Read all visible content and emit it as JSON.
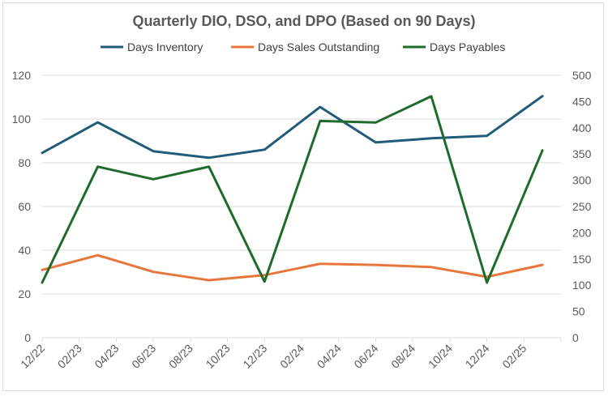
{
  "chart_data": {
    "type": "line",
    "title": "Quarterly DIO, DSO, and DPO (Based on 90 Days)",
    "xlabel": "",
    "ylabel": "",
    "x_tick_labels": [
      "12/22",
      "02/23",
      "04/23",
      "06/23",
      "08/23",
      "10/23",
      "12/23",
      "02/24",
      "04/24",
      "06/24",
      "08/24",
      "10/24",
      "12/24",
      "02/25"
    ],
    "x_range": [
      "12/22",
      "04/25"
    ],
    "ylim_left": [
      0,
      120
    ],
    "yticks_left": [
      0,
      20,
      40,
      60,
      80,
      100,
      120
    ],
    "ylim_right": [
      0,
      500
    ],
    "yticks_right": [
      0,
      50,
      100,
      150,
      200,
      250,
      300,
      350,
      400,
      450,
      500
    ],
    "grid": "horizontal",
    "legend_position": "top",
    "points_x": [
      "12/22",
      "03/23",
      "06/23",
      "09/23",
      "12/23",
      "03/24",
      "06/24",
      "09/24",
      "12/24",
      "03/25"
    ],
    "series": [
      {
        "name": "Days Inventory",
        "axis": "left",
        "color": "#1f5c7a",
        "values": [
          84.5,
          98.5,
          85.3,
          82.3,
          86.0,
          105.5,
          89.3,
          91.2,
          92.3,
          110.5
        ]
      },
      {
        "name": "Days Sales Outstanding",
        "axis": "left",
        "color": "#e8763a",
        "values": [
          31.0,
          37.7,
          30.1,
          26.3,
          28.6,
          33.8,
          33.3,
          32.3,
          27.8,
          33.3
        ]
      },
      {
        "name": "Days Payables",
        "axis": "right",
        "color": "#1e6b2a",
        "values": [
          105,
          326,
          302,
          326,
          107,
          413,
          410,
          460,
          105,
          357
        ]
      }
    ]
  }
}
